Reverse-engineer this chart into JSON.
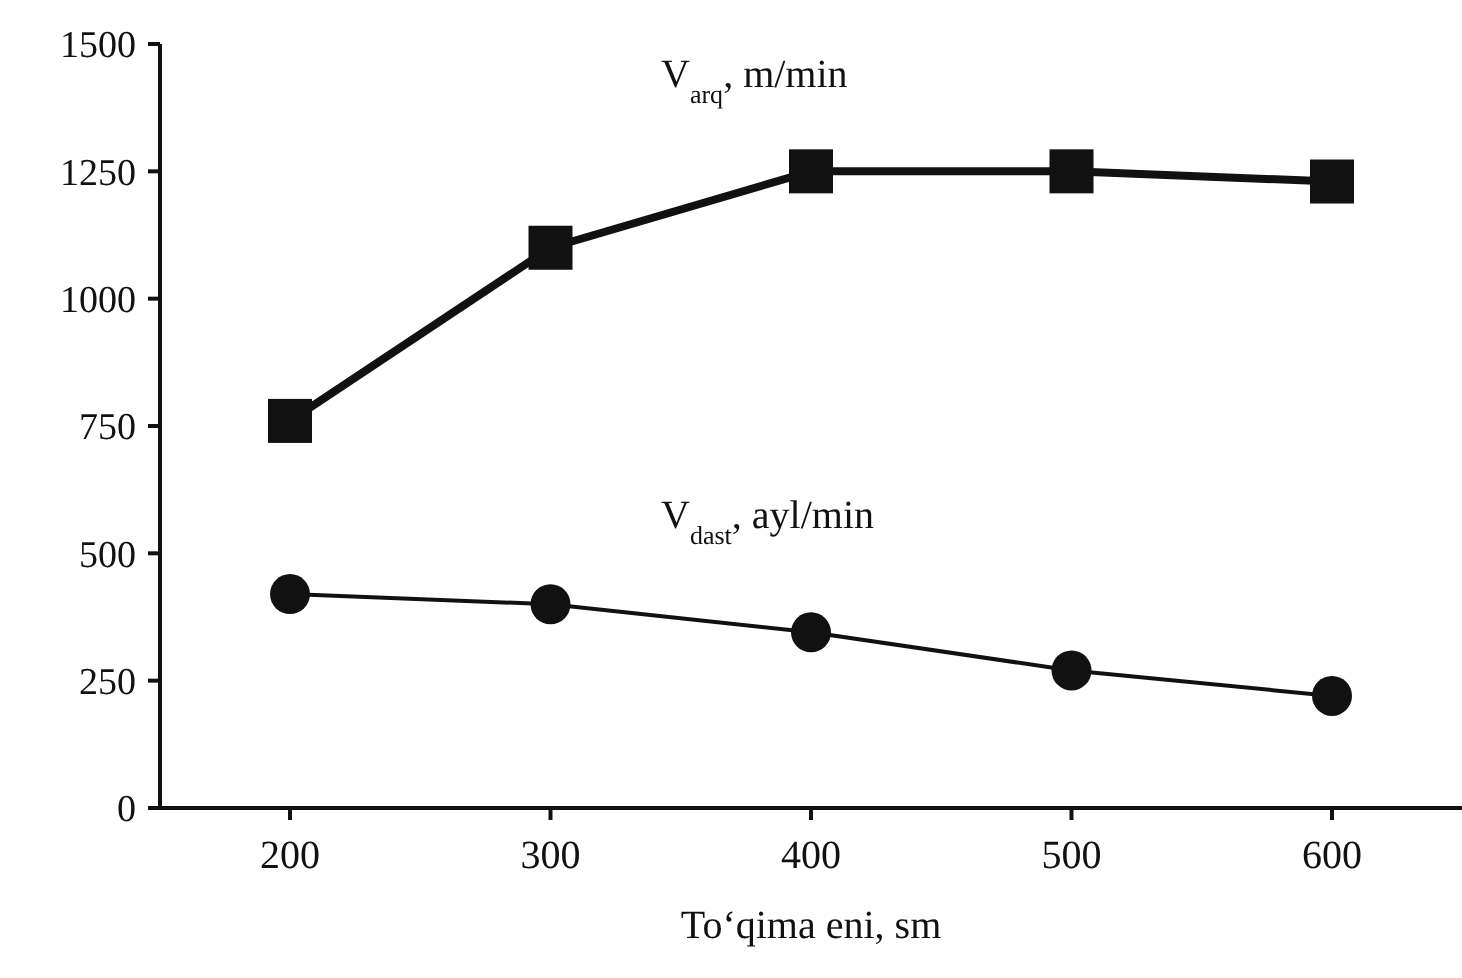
{
  "chart_data": {
    "type": "line",
    "xlabel": "To‘qima eni, sm",
    "categories": [
      "200",
      "300",
      "400",
      "500",
      "600"
    ],
    "series": [
      {
        "name": "V$_{arq}$, m/min",
        "color": "#111111",
        "marker": "square",
        "values": [
          760,
          1100,
          1250,
          1250,
          1230
        ]
      },
      {
        "name": "V$_{dast}$, ayl/min",
        "color": "#111111",
        "marker": "circle",
        "values": [
          420,
          400,
          345,
          270,
          220
        ]
      }
    ],
    "ylim": [
      0,
      1500
    ],
    "yticks": [
      0,
      250,
      500,
      750,
      1000,
      1250,
      1500
    ],
    "grid": false,
    "legend": false
  }
}
